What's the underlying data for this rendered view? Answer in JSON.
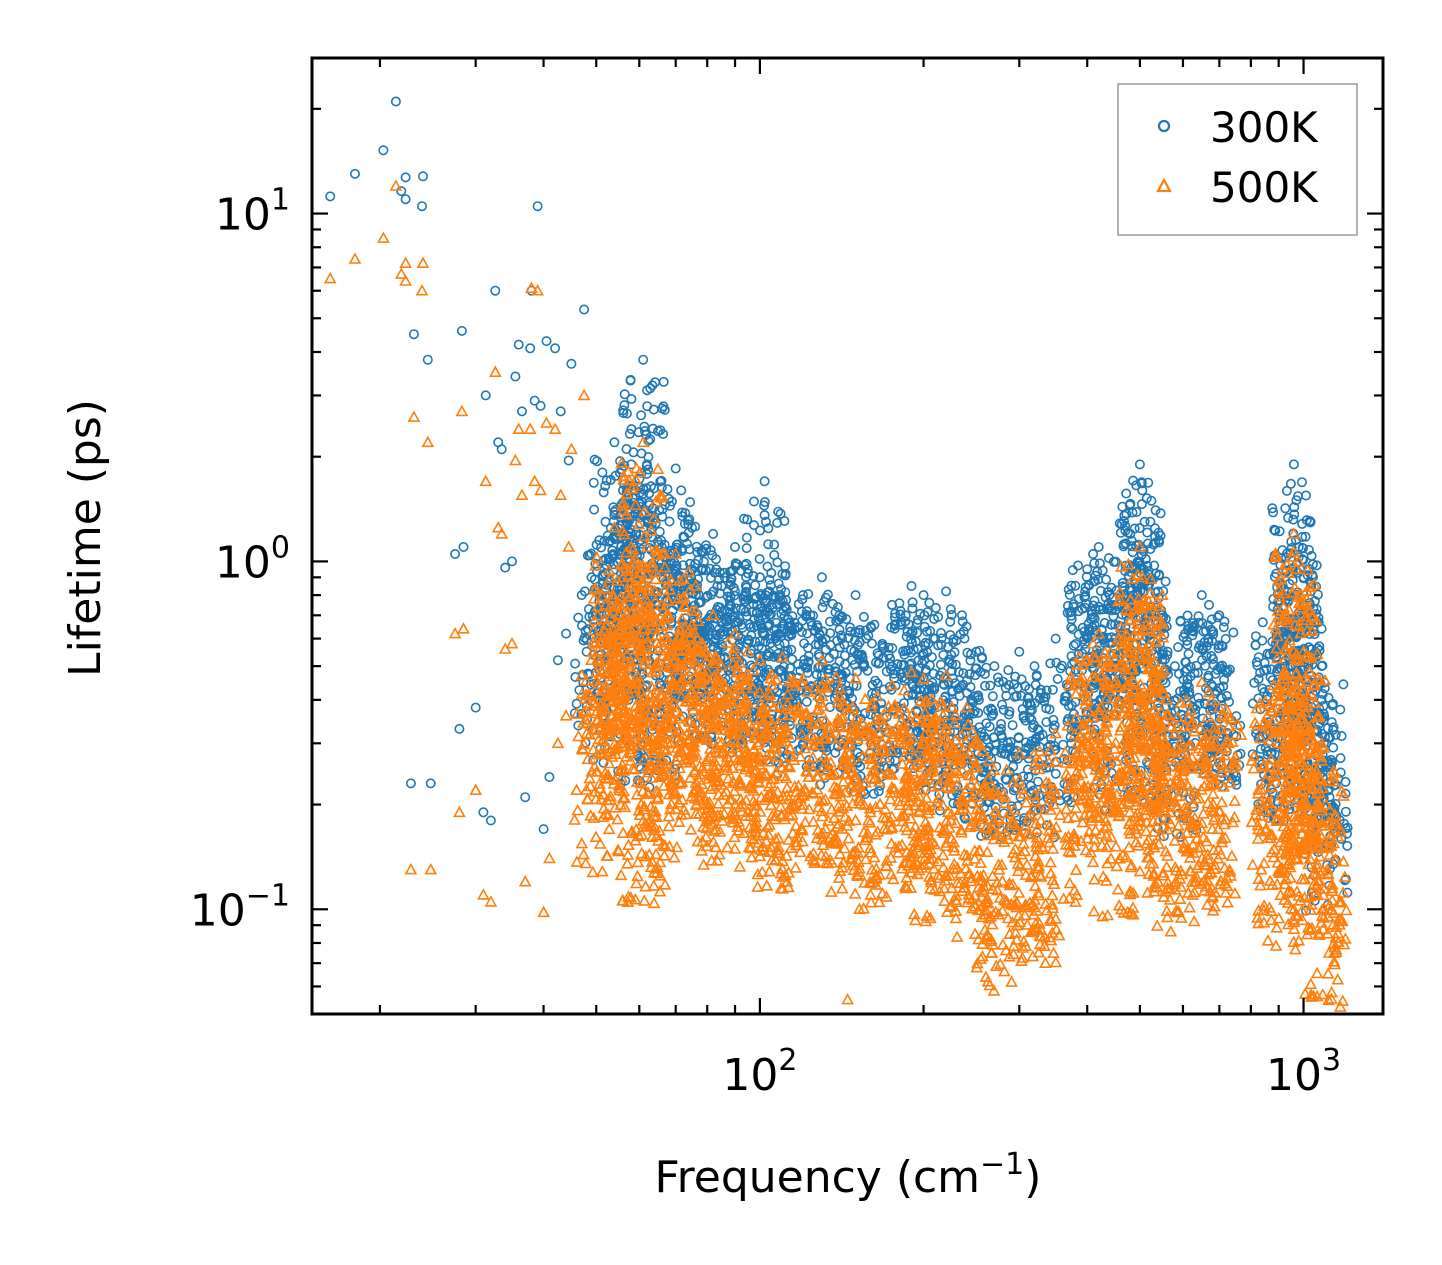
{
  "chart_data": {
    "type": "scatter",
    "title": "",
    "xlabel": "Frequency (cm",
    "xlabel_sup": "−1",
    "xlabel_end": ")",
    "ylabel": "Lifetime (ps)",
    "xscale": "log",
    "yscale": "log",
    "xlim": [
      15,
      1400
    ],
    "ylim": [
      0.05,
      28
    ],
    "x_ticks": [
      {
        "value": 100,
        "base": "10",
        "exp": "2"
      },
      {
        "value": 1000,
        "base": "10",
        "exp": "3"
      }
    ],
    "y_ticks": [
      {
        "value": 0.1,
        "base": "10",
        "exp": "−1"
      },
      {
        "value": 1,
        "base": "10",
        "exp": "0"
      },
      {
        "value": 10,
        "base": "10",
        "exp": "1"
      }
    ],
    "legend": {
      "position": "top-right"
    },
    "series": [
      {
        "name": "300K",
        "color": "#1f77b4",
        "marker": "circle",
        "points": [
          [
            16.2,
            11.2
          ],
          [
            18.0,
            13.0
          ],
          [
            20.3,
            15.2
          ],
          [
            21.4,
            21.0
          ],
          [
            21.9,
            11.6
          ],
          [
            22.3,
            12.7
          ],
          [
            22.3,
            11.0
          ],
          [
            23.1,
            4.5
          ],
          [
            23.9,
            10.5
          ],
          [
            24.0,
            12.8
          ],
          [
            24.5,
            3.8
          ],
          [
            22.8,
            0.23
          ],
          [
            24.8,
            0.23
          ],
          [
            27.5,
            1.05
          ],
          [
            28.0,
            0.33
          ],
          [
            28.3,
            4.6
          ],
          [
            28.5,
            1.1
          ],
          [
            30.0,
            0.38
          ],
          [
            31.3,
            3.0
          ],
          [
            31.0,
            0.19
          ],
          [
            32.0,
            0.18
          ],
          [
            32.6,
            6.0
          ],
          [
            33.0,
            2.2
          ],
          [
            33.5,
            2.1
          ],
          [
            34.0,
            0.96
          ],
          [
            35.0,
            1.0
          ],
          [
            35.5,
            3.4
          ],
          [
            36.0,
            4.2
          ],
          [
            36.5,
            2.7
          ],
          [
            37.0,
            0.21
          ],
          [
            37.8,
            4.1
          ],
          [
            38.0,
            6.0
          ],
          [
            38.5,
            2.9
          ],
          [
            39.0,
            10.5
          ],
          [
            39.5,
            2.8
          ],
          [
            40.0,
            0.17
          ],
          [
            40.5,
            4.3
          ],
          [
            41.0,
            0.24
          ],
          [
            42.0,
            4.1
          ],
          [
            42.5,
            0.52
          ],
          [
            43.0,
            2.7
          ],
          [
            44.0,
            0.62
          ],
          [
            44.5,
            1.95
          ],
          [
            45.0,
            3.7
          ],
          [
            46.0,
            0.39
          ],
          [
            47.0,
            0.8
          ],
          [
            47.5,
            5.3
          ],
          [
            48.0,
            0.55
          ],
          [
            49.0,
            0.9
          ],
          [
            50.0,
            0.82
          ],
          [
            52.0,
            1.3
          ],
          [
            54.0,
            2.2
          ],
          [
            55.0,
            1.2
          ],
          [
            56.0,
            1.6
          ],
          [
            58.0,
            1.9
          ],
          [
            60.0,
            0.7
          ],
          [
            61.0,
            3.8
          ],
          [
            62.0,
            1.9
          ],
          [
            65.0,
            0.75
          ],
          [
            66.0,
            1.1
          ],
          [
            70.0,
            1.85
          ],
          [
            72.0,
            1.35
          ],
          [
            75.0,
            1.25
          ],
          [
            78.0,
            0.95
          ],
          [
            82.0,
            1.2
          ],
          [
            85.0,
            0.85
          ],
          [
            90.0,
            1.1
          ],
          [
            95.0,
            0.95
          ],
          [
            100.0,
            0.9
          ],
          [
            102.0,
            1.7
          ],
          [
            105.0,
            0.75
          ],
          [
            110.0,
            0.92
          ],
          [
            120.0,
            0.8
          ],
          [
            130.0,
            0.9
          ],
          [
            140.0,
            0.7
          ],
          [
            150.0,
            0.8
          ],
          [
            160.0,
            0.65
          ],
          [
            175.0,
            0.75
          ],
          [
            190.0,
            0.85
          ],
          [
            200.0,
            0.8
          ],
          [
            210.0,
            0.6
          ],
          [
            220.0,
            0.82
          ],
          [
            240.0,
            0.65
          ],
          [
            250.0,
            0.55
          ],
          [
            270.0,
            0.5
          ],
          [
            300.0,
            0.55
          ],
          [
            320.0,
            0.5
          ],
          [
            350.0,
            0.6
          ],
          [
            400.0,
            0.95
          ],
          [
            410.0,
            1.05
          ],
          [
            420.0,
            1.1
          ],
          [
            450.0,
            0.6
          ],
          [
            480.0,
            1.2
          ],
          [
            500.0,
            1.9
          ],
          [
            505.0,
            1.6
          ],
          [
            510.0,
            1.3
          ],
          [
            520.0,
            0.62
          ],
          [
            560.0,
            0.65
          ],
          [
            580.0,
            0.5
          ],
          [
            650.0,
            0.8
          ],
          [
            670.0,
            0.75
          ],
          [
            700.0,
            0.7
          ],
          [
            880.0,
            0.78
          ],
          [
            900.0,
            0.55
          ],
          [
            940.0,
            0.65
          ],
          [
            960.0,
            1.9
          ],
          [
            970.0,
            1.5
          ],
          [
            980.0,
            1.1
          ],
          [
            1000.0,
            0.9
          ],
          [
            1050.0,
            0.45
          ],
          [
            1080.0,
            0.5
          ],
          [
            1100.0,
            0.3
          ]
        ]
      },
      {
        "name": "500K",
        "color": "#ff7f0e",
        "marker": "triangle",
        "points": [
          [
            16.2,
            6.5
          ],
          [
            18.0,
            7.4
          ],
          [
            20.3,
            8.5
          ],
          [
            21.4,
            12.0
          ],
          [
            21.9,
            6.7
          ],
          [
            22.3,
            6.4
          ],
          [
            22.3,
            7.2
          ],
          [
            23.1,
            2.6
          ],
          [
            23.9,
            6.0
          ],
          [
            24.0,
            7.2
          ],
          [
            24.5,
            2.2
          ],
          [
            22.8,
            0.13
          ],
          [
            24.8,
            0.13
          ],
          [
            27.5,
            0.62
          ],
          [
            28.0,
            0.19
          ],
          [
            28.3,
            2.7
          ],
          [
            28.5,
            0.64
          ],
          [
            30.0,
            0.22
          ],
          [
            31.3,
            1.7
          ],
          [
            31.0,
            0.11
          ],
          [
            32.0,
            0.105
          ],
          [
            32.6,
            3.5
          ],
          [
            33.0,
            1.25
          ],
          [
            33.5,
            1.2
          ],
          [
            34.0,
            0.56
          ],
          [
            35.0,
            0.58
          ],
          [
            35.5,
            1.95
          ],
          [
            36.0,
            2.4
          ],
          [
            36.5,
            1.55
          ],
          [
            37.0,
            0.12
          ],
          [
            37.8,
            2.4
          ],
          [
            38.0,
            6.1
          ],
          [
            38.5,
            1.7
          ],
          [
            39.0,
            6.0
          ],
          [
            39.5,
            1.6
          ],
          [
            40.0,
            0.098
          ],
          [
            40.5,
            2.5
          ],
          [
            41.0,
            0.14
          ],
          [
            42.0,
            2.4
          ],
          [
            42.5,
            0.3
          ],
          [
            43.0,
            1.55
          ],
          [
            44.0,
            0.36
          ],
          [
            44.5,
            1.1
          ],
          [
            45.0,
            2.1
          ],
          [
            46.0,
            0.22
          ],
          [
            47.0,
            0.47
          ],
          [
            47.5,
            3.0
          ],
          [
            48.0,
            0.32
          ],
          [
            49.0,
            0.52
          ],
          [
            50.0,
            0.48
          ],
          [
            52.0,
            0.75
          ],
          [
            54.0,
            1.25
          ],
          [
            55.0,
            0.7
          ],
          [
            56.0,
            0.9
          ],
          [
            58.0,
            1.1
          ],
          [
            60.0,
            0.4
          ],
          [
            61.0,
            2.2
          ],
          [
            62.0,
            1.1
          ],
          [
            65.0,
            0.44
          ],
          [
            66.0,
            0.65
          ],
          [
            70.0,
            1.05
          ],
          [
            72.0,
            0.78
          ],
          [
            75.0,
            0.72
          ],
          [
            78.0,
            0.55
          ],
          [
            82.0,
            0.7
          ],
          [
            85.0,
            0.5
          ],
          [
            90.0,
            0.62
          ],
          [
            95.0,
            0.55
          ],
          [
            100.0,
            0.52
          ],
          [
            105.0,
            0.44
          ],
          [
            110.0,
            0.53
          ],
          [
            120.0,
            0.46
          ],
          [
            130.0,
            0.52
          ],
          [
            140.0,
            0.41
          ],
          [
            145.0,
            0.055
          ],
          [
            150.0,
            0.46
          ],
          [
            160.0,
            0.38
          ],
          [
            175.0,
            0.44
          ],
          [
            190.0,
            0.48
          ],
          [
            200.0,
            0.46
          ],
          [
            210.0,
            0.35
          ],
          [
            220.0,
            0.47
          ],
          [
            240.0,
            0.38
          ],
          [
            250.0,
            0.3
          ],
          [
            270.0,
            0.22
          ],
          [
            300.0,
            0.28
          ],
          [
            320.0,
            0.26
          ],
          [
            350.0,
            0.32
          ],
          [
            400.0,
            0.52
          ],
          [
            410.0,
            0.58
          ],
          [
            420.0,
            0.62
          ],
          [
            450.0,
            0.36
          ],
          [
            480.0,
            0.68
          ],
          [
            500.0,
            1.1
          ],
          [
            505.0,
            0.9
          ],
          [
            510.0,
            0.75
          ],
          [
            520.0,
            0.42
          ],
          [
            560.0,
            0.4
          ],
          [
            580.0,
            0.32
          ],
          [
            650.0,
            0.45
          ],
          [
            670.0,
            0.42
          ],
          [
            700.0,
            0.38
          ],
          [
            880.0,
            0.44
          ],
          [
            900.0,
            0.3
          ],
          [
            940.0,
            0.38
          ],
          [
            960.0,
            1.2
          ],
          [
            970.0,
            0.95
          ],
          [
            980.0,
            0.65
          ],
          [
            1000.0,
            0.55
          ],
          [
            1050.0,
            0.28
          ],
          [
            1080.0,
            0.3
          ],
          [
            1100.0,
            0.2
          ]
        ]
      }
    ]
  }
}
